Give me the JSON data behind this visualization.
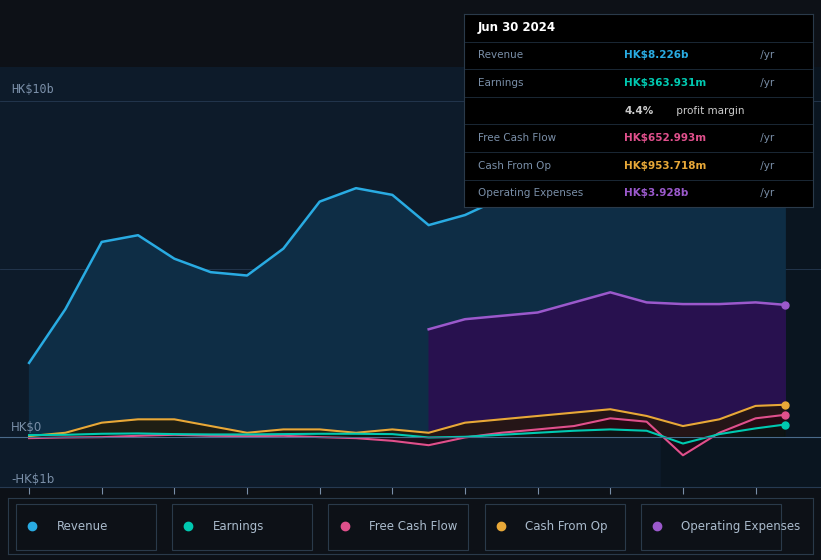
{
  "bg_color": "#0d1117",
  "plot_bg_color": "#0d1b2a",
  "grid_color": "#263a52",
  "text_color": "#7a8fa8",
  "ylabel_top": "HK$10b",
  "ylabel_zero": "HK$0",
  "ylabel_neg": "-HK$1b",
  "years": [
    2014.0,
    2014.5,
    2015.0,
    2015.5,
    2016.0,
    2016.5,
    2017.0,
    2017.5,
    2018.0,
    2018.5,
    2019.0,
    2019.5,
    2020.0,
    2020.5,
    2021.0,
    2021.5,
    2022.0,
    2022.5,
    2023.0,
    2023.5,
    2024.0,
    2024.4
  ],
  "revenue": [
    2.2,
    3.8,
    5.8,
    6.0,
    5.3,
    4.9,
    4.8,
    5.6,
    7.0,
    7.4,
    7.2,
    6.3,
    6.6,
    7.1,
    7.3,
    8.6,
    9.6,
    9.3,
    7.8,
    7.4,
    8.1,
    8.226
  ],
  "earnings": [
    0.05,
    0.06,
    0.09,
    0.1,
    0.08,
    0.07,
    0.07,
    0.08,
    0.09,
    0.09,
    0.08,
    -0.02,
    0.0,
    0.06,
    0.12,
    0.18,
    0.22,
    0.18,
    -0.2,
    0.08,
    0.25,
    0.364
  ],
  "free_cash_flow": [
    -0.04,
    -0.02,
    -0.01,
    0.03,
    0.06,
    0.03,
    0.02,
    0.03,
    -0.01,
    -0.04,
    -0.12,
    -0.25,
    -0.02,
    0.12,
    0.22,
    0.32,
    0.55,
    0.45,
    -0.55,
    0.12,
    0.55,
    0.653
  ],
  "cash_from_op": [
    0.02,
    0.12,
    0.42,
    0.52,
    0.52,
    0.32,
    0.12,
    0.22,
    0.22,
    0.12,
    0.22,
    0.12,
    0.42,
    0.52,
    0.62,
    0.72,
    0.82,
    0.62,
    0.32,
    0.52,
    0.92,
    0.954
  ],
  "op_exp_years": [
    2019.5,
    2020.0,
    2020.5,
    2021.0,
    2021.5,
    2022.0,
    2022.5,
    2023.0,
    2023.5,
    2024.0,
    2024.4
  ],
  "op_exp": [
    3.2,
    3.5,
    3.6,
    3.7,
    4.0,
    4.3,
    4.0,
    3.95,
    3.95,
    4.0,
    3.928
  ],
  "revenue_color": "#29abe2",
  "revenue_fill": "#0e2d45",
  "earnings_color": "#00c9b1",
  "fcf_color": "#e0508c",
  "cfop_color": "#e8a838",
  "opex_color": "#9b59cc",
  "opex_fill": "#2a1050",
  "shaded_start": 2022.7,
  "shaded_color": "#0a1520",
  "info_box": {
    "date": "Jun 30 2024",
    "revenue_val": "HK$8.226b",
    "revenue_color": "#29abe2",
    "earnings_val": "HK$363.931m",
    "earnings_color": "#00c9b1",
    "profit_margin": "4.4%",
    "fcf_val": "HK$652.993m",
    "fcf_color": "#e0508c",
    "cfop_val": "HK$953.718m",
    "cfop_color": "#e8a838",
    "opex_val": "HK$3.928b",
    "opex_color": "#9b59cc"
  },
  "legend_items": [
    {
      "label": "Revenue",
      "color": "#29abe2"
    },
    {
      "label": "Earnings",
      "color": "#00c9b1"
    },
    {
      "label": "Free Cash Flow",
      "color": "#e0508c"
    },
    {
      "label": "Cash From Op",
      "color": "#e8a838"
    },
    {
      "label": "Operating Expenses",
      "color": "#9b59cc"
    }
  ],
  "xmin": 2013.6,
  "xmax": 2024.9,
  "ymin": -1.5,
  "ymax": 11.0,
  "xticks": [
    2014,
    2015,
    2016,
    2017,
    2018,
    2019,
    2020,
    2021,
    2022,
    2023,
    2024
  ]
}
